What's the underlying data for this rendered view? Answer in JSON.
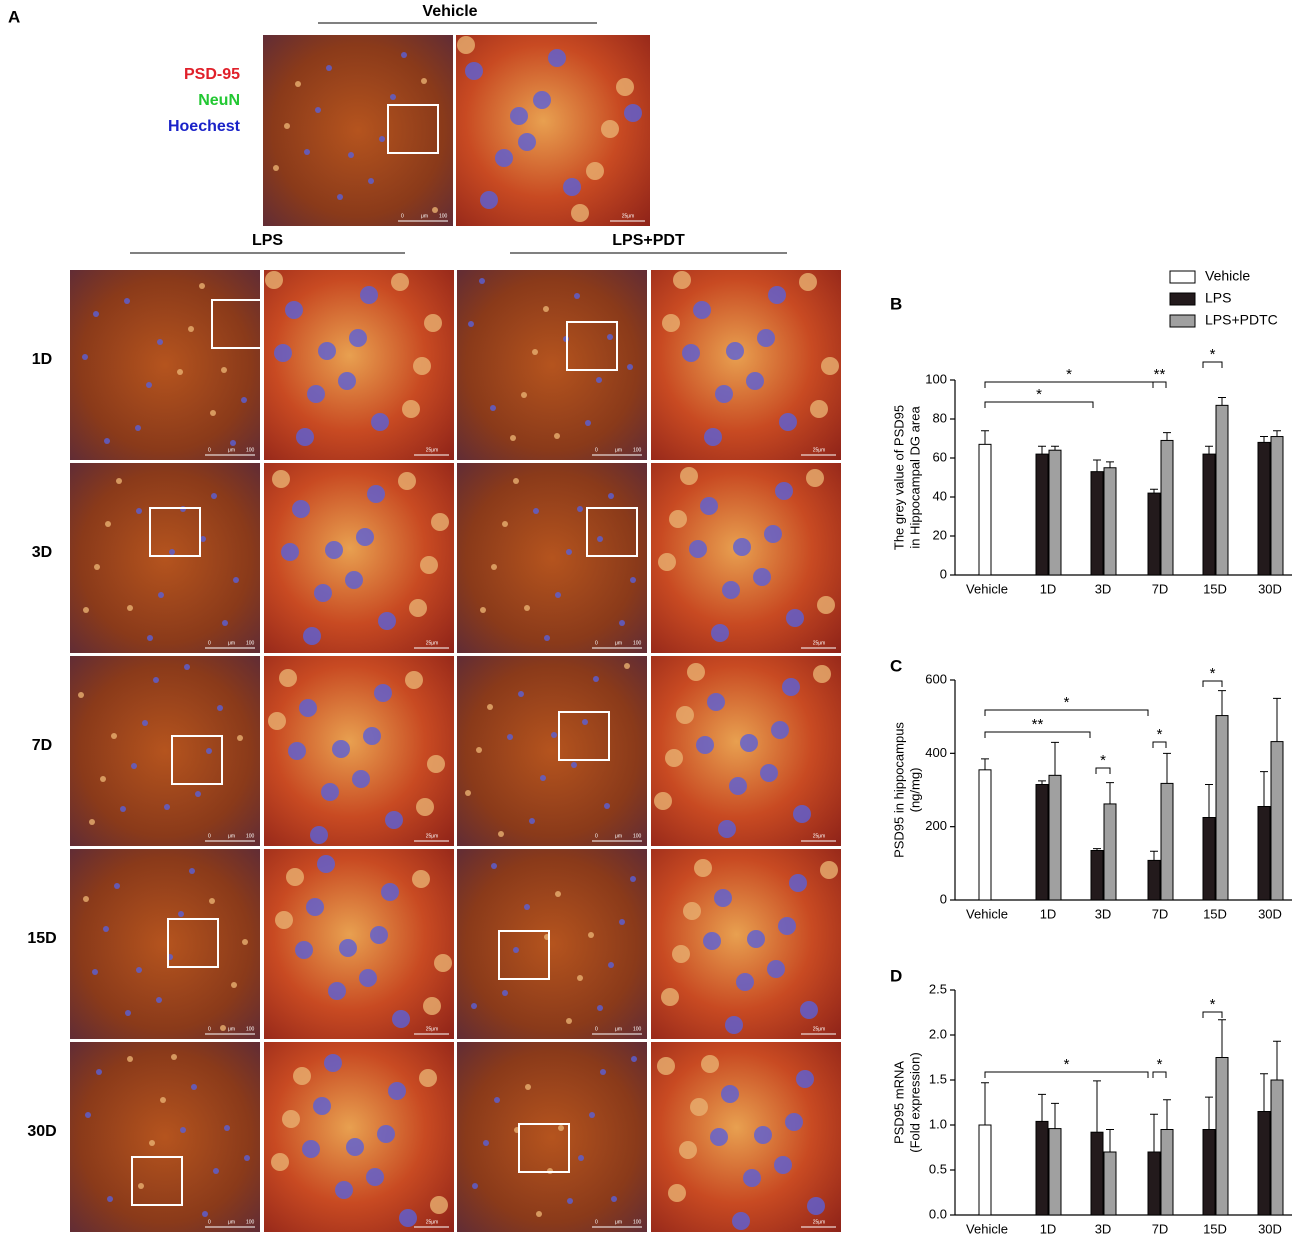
{
  "panel_a": {
    "label": "A",
    "legend": [
      "PSD-95",
      "NeuN",
      "Hoechest"
    ],
    "legend_colors": [
      "#e0202a",
      "#22c832",
      "#1a22c8"
    ],
    "vehicle_title": "Vehicle",
    "group_titles": [
      "LPS",
      "LPS+PDT"
    ],
    "rows": [
      "1D",
      "3D",
      "7D",
      "15D",
      "30D"
    ],
    "scale_low": "0",
    "scale_unit": "μm",
    "scale_high": "100",
    "scale_zoom": "25μm"
  },
  "chart_data": [
    {
      "type": "bar",
      "panel": "B",
      "ylabel": [
        "The grey value of PSD95",
        "in Hippocampal DG area"
      ],
      "categories": [
        "Vehicle",
        "1D",
        "3D",
        "7D",
        "15D",
        "30D"
      ],
      "series": [
        {
          "name": "Vehicle",
          "color": "#ffffff",
          "values": [
            67,
            null,
            null,
            null,
            null,
            null
          ],
          "errors": [
            7,
            null,
            null,
            null,
            null,
            null
          ]
        },
        {
          "name": "LPS",
          "color": "#231a1c",
          "values": [
            null,
            62,
            53,
            42,
            62,
            68
          ],
          "errors": [
            null,
            4,
            6,
            2,
            4,
            3
          ]
        },
        {
          "name": "LPS+PDTC",
          "color": "#a0a0a0",
          "values": [
            null,
            64,
            55,
            69,
            87,
            71
          ],
          "errors": [
            null,
            2,
            3,
            4,
            4,
            3
          ]
        }
      ],
      "ylim": [
        0,
        100
      ],
      "yticks": [
        0,
        20,
        40,
        60,
        80,
        100
      ],
      "annotations": [
        "*",
        "*",
        "**",
        "*"
      ]
    },
    {
      "type": "bar",
      "panel": "C",
      "ylabel": [
        "PSD95 in hippocampus",
        "(ng/mg)"
      ],
      "categories": [
        "Vehicle",
        "1D",
        "3D",
        "7D",
        "15D",
        "30D"
      ],
      "series": [
        {
          "name": "Vehicle",
          "color": "#ffffff",
          "values": [
            355,
            null,
            null,
            null,
            null,
            null
          ],
          "errors": [
            30,
            null,
            null,
            null,
            null,
            null
          ]
        },
        {
          "name": "LPS",
          "color": "#231a1c",
          "values": [
            null,
            315,
            135,
            108,
            225,
            255
          ],
          "errors": [
            null,
            10,
            5,
            25,
            90,
            95
          ]
        },
        {
          "name": "LPS+PDTC",
          "color": "#a0a0a0",
          "values": [
            null,
            340,
            262,
            318,
            503,
            432
          ],
          "errors": [
            null,
            90,
            58,
            82,
            68,
            118
          ]
        }
      ],
      "ylim": [
        0,
        600
      ],
      "yticks": [
        0,
        200,
        400,
        600
      ],
      "annotations": [
        "*",
        "**",
        "*",
        "*",
        "*"
      ]
    },
    {
      "type": "bar",
      "panel": "D",
      "ylabel": [
        "PSD95 mRNA",
        "(Fold expression)"
      ],
      "categories": [
        "Vehicle",
        "1D",
        "3D",
        "7D",
        "15D",
        "30D"
      ],
      "series": [
        {
          "name": "Vehicle",
          "color": "#ffffff",
          "values": [
            1.0,
            null,
            null,
            null,
            null,
            null
          ],
          "errors": [
            0.47,
            null,
            null,
            null,
            null,
            null
          ]
        },
        {
          "name": "LPS",
          "color": "#231a1c",
          "values": [
            null,
            1.04,
            0.92,
            0.7,
            0.95,
            1.15
          ],
          "errors": [
            null,
            0.3,
            0.57,
            0.42,
            0.36,
            0.42
          ]
        },
        {
          "name": "LPS+PDTC",
          "color": "#a0a0a0",
          "values": [
            null,
            0.96,
            0.7,
            0.95,
            1.75,
            1.5
          ],
          "errors": [
            null,
            0.28,
            0.25,
            0.33,
            0.42,
            0.43
          ]
        }
      ],
      "ylim": [
        0,
        2.5
      ],
      "yticks": [
        {
          "value": 0,
          "label": "0.0"
        },
        {
          "value": 0.5,
          "label": "0.5"
        },
        {
          "value": 1,
          "label": "1.0"
        },
        {
          "value": 1.5,
          "label": "1.5"
        },
        {
          "value": 2,
          "label": "2.0"
        },
        {
          "value": 2.5,
          "label": "2.5"
        }
      ],
      "annotations": [
        "*",
        "*",
        "*"
      ]
    }
  ]
}
